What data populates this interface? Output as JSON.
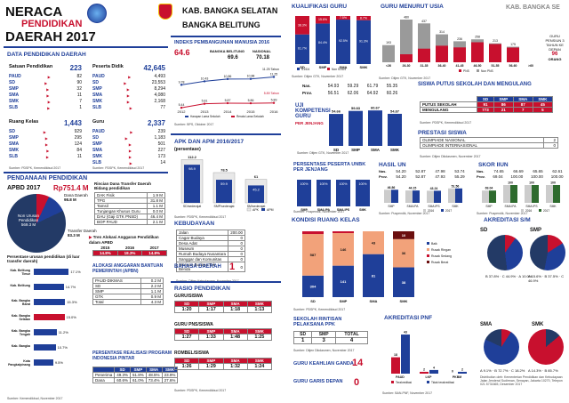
{
  "header": {
    "line1": "NERACA",
    "line2": "PENDIDIKAN",
    "line3": "DAERAH 2017",
    "region1": "KAB. BANGKA SELATAN",
    "region2": "BANGKA BELITUNG",
    "corner": "KAB. BANGKA SE"
  },
  "data_pendidikan": {
    "title": "DATA PENDIDIKAN DAERAH",
    "satuan": {
      "label": "Satuan Pendidikan",
      "total": "223",
      "rows": [
        [
          "PAUD",
          "82"
        ],
        [
          "SD",
          "90"
        ],
        [
          "SMP",
          "32"
        ],
        [
          "SMA",
          "11"
        ],
        [
          "SMK",
          "7"
        ],
        [
          "SLB",
          "1"
        ]
      ]
    },
    "peserta": {
      "label": "Peserta Didik",
      "total": "42,645",
      "rows": [
        [
          "PAUD",
          "4,493"
        ],
        [
          "SD",
          "23,553"
        ],
        [
          "SMP",
          "8,294"
        ],
        [
          "SMA",
          "4,080"
        ],
        [
          "SMK",
          "2,168"
        ],
        [
          "SLB",
          "77"
        ]
      ]
    },
    "ruang": {
      "label": "Ruang Kelas",
      "total": "1,443",
      "rows": [
        [
          "SD",
          "929"
        ],
        [
          "SMP",
          "295"
        ],
        [
          "SMA",
          "124"
        ],
        [
          "SMK",
          "84"
        ],
        [
          "SLB",
          "11"
        ]
      ]
    },
    "guru": {
      "label": "Guru",
      "total": "2,337",
      "rows": [
        [
          "PAUD",
          "239"
        ],
        [
          "SD",
          "1,183"
        ],
        [
          "SMP",
          "501"
        ],
        [
          "SMA",
          "227"
        ],
        [
          "SMK",
          "173"
        ],
        [
          "SLB",
          "14"
        ]
      ]
    },
    "src1": "Sumber: PDSPK, Kemendikbud 2017",
    "src2": "Sumber: PDSPK, Kemendikbud 2017"
  },
  "pendanaan": {
    "title": "PENDANAAN PENDIDIKAN",
    "apbd_label": "APBD 2017",
    "apbd_value": "Rp751.4 M",
    "non_urusan": "Non Urusan Pendidikan",
    "non_urusan_val": "569.3 M",
    "dana_label": "Dana Daerah",
    "dana_val": "98.8 M",
    "transfer_label": "Transfer Daerah",
    "transfer_val": "83.3 M",
    "rincian_title": "Rincian Dana Transfer Daerah Bidang pendidikan",
    "rincian": [
      [
        "DAK Fisik",
        "1.9 M"
      ],
      [
        "TPG",
        "31.8 M"
      ],
      [
        "Tamsil",
        "1.1 M"
      ],
      [
        "Tunjangan Khusus Guru",
        "0.0 M"
      ],
      [
        "DAU (Gaji GTK PNSD)",
        "46.4 M"
      ],
      [
        "BOP PAUD",
        "2.1 M"
      ]
    ],
    "persentase_label": "Persentase urusan pendidikan (di luar transfer daerah)",
    "kab": [
      [
        "Kab. Belitung Timur",
        "17.1%"
      ],
      [
        "Kab. Belitung",
        "14.7%"
      ],
      [
        "Kab. Bangka Barat",
        "15.3%"
      ],
      [
        "Kab. Bangka Selatan",
        "15.0%"
      ],
      [
        "Kab. Bangka Tengah",
        "11.2%"
      ],
      [
        "Kab. Bangka",
        "10.7%"
      ],
      [
        "Kota Pangkalpinang",
        "9.5%"
      ]
    ],
    "kab_vals": [
      17.1,
      14.7,
      15.3,
      15.0,
      11.2,
      10.7,
      9.5
    ],
    "tren_title": "Tren Alokasi Anggaran Pendidikan dalam APBD",
    "tren_years": [
      "2015",
      "2016",
      "2017"
    ],
    "tren_vals": [
      "14.8%",
      "18.3%",
      "14.8%"
    ],
    "alokasi_title": "ALOKASI ANGGARAN BANTUAN PEMERINTAH (APBN)",
    "alokasi": [
      [
        "PAUD-DIKMAS",
        "0.2 M"
      ],
      [
        "SD",
        "2.2 M"
      ],
      [
        "SMP",
        "1.1 M"
      ],
      [
        "GTK",
        "0.9 M"
      ],
      [
        "Total",
        "4.3 M"
      ]
    ],
    "realisasi_title": "PERSENTASE REALISASI PROGRAM INDONESIA PINTAR",
    "realisasi_head": [
      "",
      "SD",
      "SMP",
      "SMA",
      "SMK"
    ],
    "realisasi_rows": [
      [
        "Penerima",
        "49.3%",
        "51.8%",
        "48.5%",
        "23.9%"
      ],
      [
        "Dana",
        "60.6%",
        "61.0%",
        "73.4%",
        "27.6%"
      ]
    ],
    "src": "Sumber: Kemendikbud, November 2017"
  },
  "ipm": {
    "title": "INDEKS PEMBANGUNAN MANUSIA 2016",
    "value": "64.6",
    "bangka": "BANGKA BELITUNG",
    "bangka_val": "69.6",
    "nasional": "NASIONAL",
    "nasional_val": "70.18",
    "years": [
      "2012",
      "2013",
      "2014",
      "2015",
      "2016"
    ],
    "hls": [
      "9.78",
      "10.43",
      "10.86",
      "10.88",
      "11.25"
    ],
    "rls": [
      "5.44",
      "5.81",
      "5.87",
      "5.86",
      "5.89"
    ],
    "hls_label": "Harapan Lama Sekolah",
    "rls_label": "Rerata Lama Sekolah",
    "hls_last": "11.25 Tahun",
    "rls_last": "5.89 Tahun",
    "src": "Sumber: BPS, Oktober 2017"
  },
  "apk": {
    "title": "APK DAN APM 2016/2017",
    "subtitle": "(persentase)",
    "cats": [
      "SD/sederajat",
      "SMP/sederajat",
      "SM/sederajat"
    ],
    "apk": [
      112.2,
      78.5,
      61.0
    ],
    "apm": [
      98.9,
      59.9,
      45.2
    ],
    "apk_label": "APK",
    "apm_label": "APM",
    "src": "Sumber: PDSPK, Kemendikbud 2017"
  },
  "kebudayaan": {
    "title": "KEBUDAYAAN",
    "rows": [
      [
        "Jalan",
        "200.00"
      ],
      [
        "Cagar Budaya",
        "0"
      ],
      [
        "Desa Adat",
        "0"
      ],
      [
        "Museum",
        "0"
      ],
      [
        "Rumah Budaya Nusantara",
        "0"
      ],
      [
        "Sanggar dan Komunitas",
        "0"
      ],
      [
        "Warisan Budaya Tak Benda",
        "0"
      ]
    ],
    "src": "Sumber: Ditjen Kebudayaan, November 2017"
  },
  "bahasa": {
    "title": "BAHASA DAERAH",
    "value": "1",
    "src": "Sumber: BPPB, November 2017"
  },
  "rasio": {
    "title": "RASIO PENDIDIKAN",
    "gs_label": "GURU/SISWA",
    "gs_head": [
      "SD",
      "SMP",
      "SMA",
      "SMK"
    ],
    "gs_vals": [
      "1:20",
      "1:17",
      "1:18",
      "1:13"
    ],
    "gp_label": "GURU PNS/SISWA",
    "gp_vals": [
      "1:27",
      "1:33",
      "1:48",
      "1:25"
    ],
    "rombel_label": "ROMBEL/SISWA",
    "rombel_vals": [
      "1:26",
      "1:29",
      "1:32",
      "1:24"
    ],
    "src": "Sumber: PDSPK, Kemendikbud 2017"
  },
  "kualifikasi": {
    "title": "KUALIFIKASI GURU",
    "cats": [
      "SD",
      "SMP",
      "SMA",
      "SMK"
    ],
    "blue": [
      61.7,
      84.4,
      92.5,
      91.3
    ],
    "red": [
      38.3,
      15.6,
      7.5,
      8.7
    ],
    "s1_label": "S1/D4",
    "non_label": "Non S1/D4",
    "src": "Sumber: Ditjen GTK, November 2017"
  },
  "usia": {
    "title": "GURU MENURUT USIA",
    "cats": [
      "<26",
      "26-30",
      "31-35",
      "36-40",
      "41-45",
      "46-50",
      "51-55",
      "56-60",
      ">60"
    ],
    "total": [
      193,
      480,
      437,
      314,
      236,
      258,
      213,
      175,
      0
    ],
    "pns": [
      0,
      90,
      153,
      186,
      167,
      225,
      205,
      165,
      0
    ],
    "labels_top": [
      "193",
      "480",
      "437",
      "314",
      "236",
      "258",
      "213",
      "175",
      ""
    ],
    "pensiun_label": "GURU PENSIUN 3 TAHUN KE DEPAN",
    "pensiun_val": "96",
    "pensiun_unit": "ORANG",
    "legend": [
      "PNS",
      "Non PNS"
    ],
    "src": "Sumber: Ditjen GTK, November 2017"
  },
  "un": {
    "title_a": "Nas.",
    "title_b": "Prov.",
    "nas": [
      "54.93",
      "59.29",
      "61.79",
      "55.35"
    ],
    "prov": [
      "56.51",
      "62.06",
      "64.92",
      "60.26"
    ],
    "kompetensi_title": "UJI KOMPETENSI GURU",
    "kompetensi_sub": "PER JENJANG",
    "vals": [
      54.66,
      59.83,
      60.67,
      54.87
    ],
    "cats": [
      "SD",
      "SMP",
      "SMA",
      "SMK"
    ],
    "src": "Sumber: Ditjen GTK, November 2017"
  },
  "putus": {
    "title": "SISWA PUTUS SEKOLAH DAN MENGULANG",
    "head": [
      "SD",
      "SMP",
      "SMA",
      "SMK"
    ],
    "putus_label": "PUTUS SEKOLAH",
    "putus": [
      "91",
      "86",
      "87",
      "45"
    ],
    "mengulang_label": "MENGULANG",
    "mengulang": [
      "773",
      "21",
      "7",
      "5"
    ],
    "src": "Sumber: PDSPK, Kemendikbud 2017"
  },
  "prestasi": {
    "title": "PRESTASI SISWA",
    "rows": [
      [
        "OLIMPIADE NASIONAL",
        "2"
      ],
      [
        "OLIMPIADE INTERNASIONAL",
        "0"
      ]
    ],
    "src": "Sumber: Ditjen Dikdasmen, November 2017"
  },
  "unbk": {
    "title": "PERSENTASE PESERTA UNBK PER JENJANG",
    "cats": [
      "SMP",
      "SMA IPA",
      "SMA IPS",
      "SMK"
    ],
    "vals": [
      100,
      100,
      100,
      100
    ],
    "src": "Sumber: Puspendik, November 2017"
  },
  "hasil_un": {
    "title": "HASIL UN",
    "nas_label": "Nas.",
    "prov_label": "Prov.",
    "nas": [
      "54.20",
      "52.87",
      "47.98",
      "53.74"
    ],
    "prov": [
      "54.20",
      "52.87",
      "47.93",
      "55.29"
    ],
    "vals": [
      46.86,
      44.15,
      43.24,
      51.56
    ],
    "cats": [
      "SMP",
      "SMA IPA",
      "SMA IPS",
      "SMK"
    ],
    "years": [
      "2016",
      "2017"
    ],
    "src": "Sumber: Puspendik, November 2017"
  },
  "iiun": {
    "title": "SKOR IIUN",
    "nas_label": "Nas.",
    "prov_label": "Prov.",
    "nas": [
      "74.65",
      "66.69",
      "65.65",
      "62.61"
    ],
    "prov": [
      "69.04",
      "100.00",
      "100.00",
      "100.00"
    ],
    "vals": [
      69.04,
      100,
      100,
      100
    ],
    "cats": [
      "SMP",
      "SMA IPA",
      "SMA IPS",
      "SMK"
    ],
    "years": [
      "2016",
      "2017"
    ],
    "src": "Sumber: Puspendik, November 2017"
  },
  "kondisi": {
    "title": "KONDISI RUANG KELAS",
    "cats": [
      "SD",
      "SMP",
      "SMA",
      "SMK"
    ],
    "baik": [
      304,
      141,
      81,
      38
    ],
    "rusak_ringan": [
      587,
      146,
      43,
      36
    ],
    "rusak_sedang": [
      38,
      8,
      0,
      0
    ],
    "rusak_berat": [
      0,
      0,
      0,
      10
    ],
    "legend": [
      "Baik",
      "Rusak Ringan",
      "Rusak Sedang",
      "Rusak Berat"
    ],
    "src": "Sumber: PDSPK, Kemendikbud 2017"
  },
  "akreditasi_sm": {
    "title": "AKREDITASI S/M",
    "sd": "SD",
    "smp": "SMP",
    "sma": "SMA",
    "smk": "SMK",
    "sd_vals": [
      [
        "A",
        "10.0%"
      ],
      [
        "B",
        "37.8%"
      ],
      [
        "C",
        "44.9%"
      ]
    ],
    "smp_vals": [
      [
        "A",
        "15.6%"
      ],
      [
        "B",
        "37.5%"
      ],
      [
        "C",
        "46.9%"
      ]
    ],
    "sma_vals": [
      [
        "A",
        "9.1%"
      ],
      [
        "B",
        "72.7%"
      ],
      [
        "C",
        "18.2%"
      ]
    ],
    "smk_vals": [
      [
        "A",
        "14.3%"
      ],
      [
        "B",
        "85.7%"
      ]
    ],
    "src": "Distribution oleh: Kementerian Pendidikan dan Kebudayaan Jalan Jenderal Sudirman, Senayan, Jakarta 10270, Telepon 021 5731665, Desember 2017"
  },
  "ppk": {
    "title": "SEKOLAH RINTISAN PELAKSANA PPK",
    "head": [
      "SD",
      "SMP",
      "TOTAL"
    ],
    "vals": [
      "1",
      "3",
      "4"
    ],
    "src": "Sumber: Ditjen Dikdasmen, November 2017"
  },
  "keahlian": {
    "title": "GURU KEAHLIAN GANDA",
    "value": "14",
    "src": "Sumber: Ditjen GTK, November 2017"
  },
  "garis": {
    "title": "GURU GARIS DEPAN",
    "value": "0",
    "src": "Sumber: Ditjen GTK, November 2017"
  },
  "pnf": {
    "title": "AKREDITASI PNF",
    "cats": [
      "PAUD",
      "LKP",
      "PKBM"
    ],
    "terakreditasi": [
      18,
      2,
      0
    ],
    "tidak": [
      43,
      4,
      2
    ],
    "legend": [
      "Terakreditasi",
      "Tidak terakreditasi"
    ],
    "src": "Sumber: BAN-PNF, November 2017"
  }
}
